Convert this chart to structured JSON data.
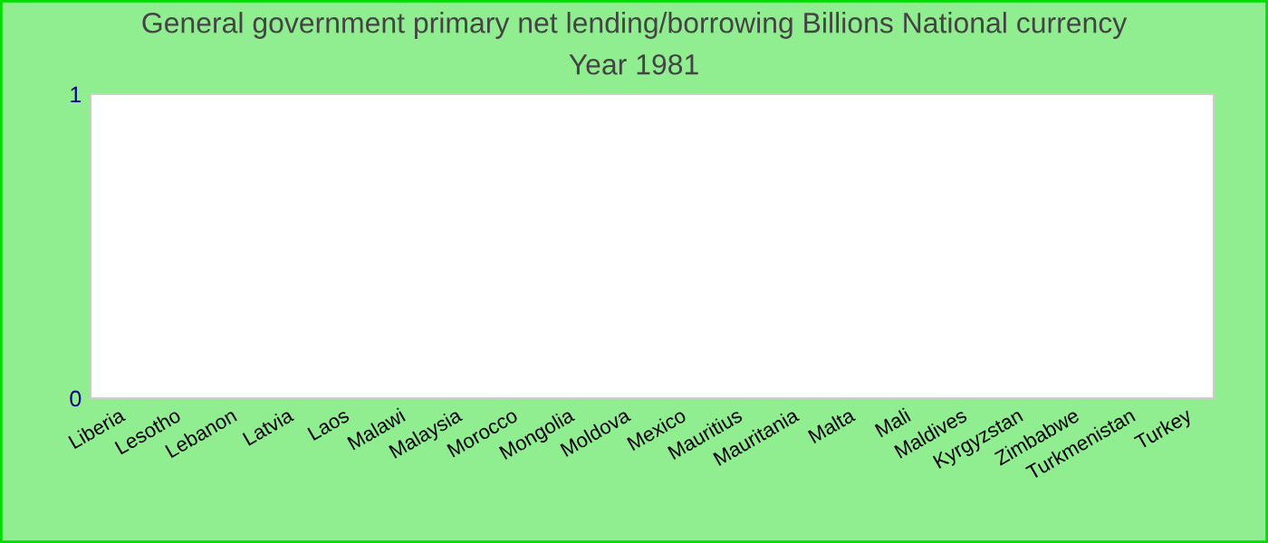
{
  "chart_data": {
    "type": "bar",
    "title": "General government primary net lending/borrowing Billions National currency",
    "subtitle": "Year 1981",
    "categories": [
      "Liberia",
      "Lesotho",
      "Lebanon",
      "Latvia",
      "Laos",
      "Malawi",
      "Malaysia",
      "Morocco",
      "Mongolia",
      "Moldova",
      "Mexico",
      "Mauritius",
      "Mauritania",
      "Malta",
      "Mali",
      "Maldives",
      "Kyrgyzstan",
      "Zimbabwe",
      "Turkmenistan",
      "Turkey"
    ],
    "values": [
      0,
      0,
      0,
      0,
      0,
      0,
      0,
      0,
      0,
      0,
      0,
      0,
      0,
      0,
      0,
      0,
      0,
      0,
      0,
      0
    ],
    "ylim": [
      0,
      1
    ],
    "yticks": [
      0,
      1
    ],
    "grid": false,
    "legend": false
  }
}
